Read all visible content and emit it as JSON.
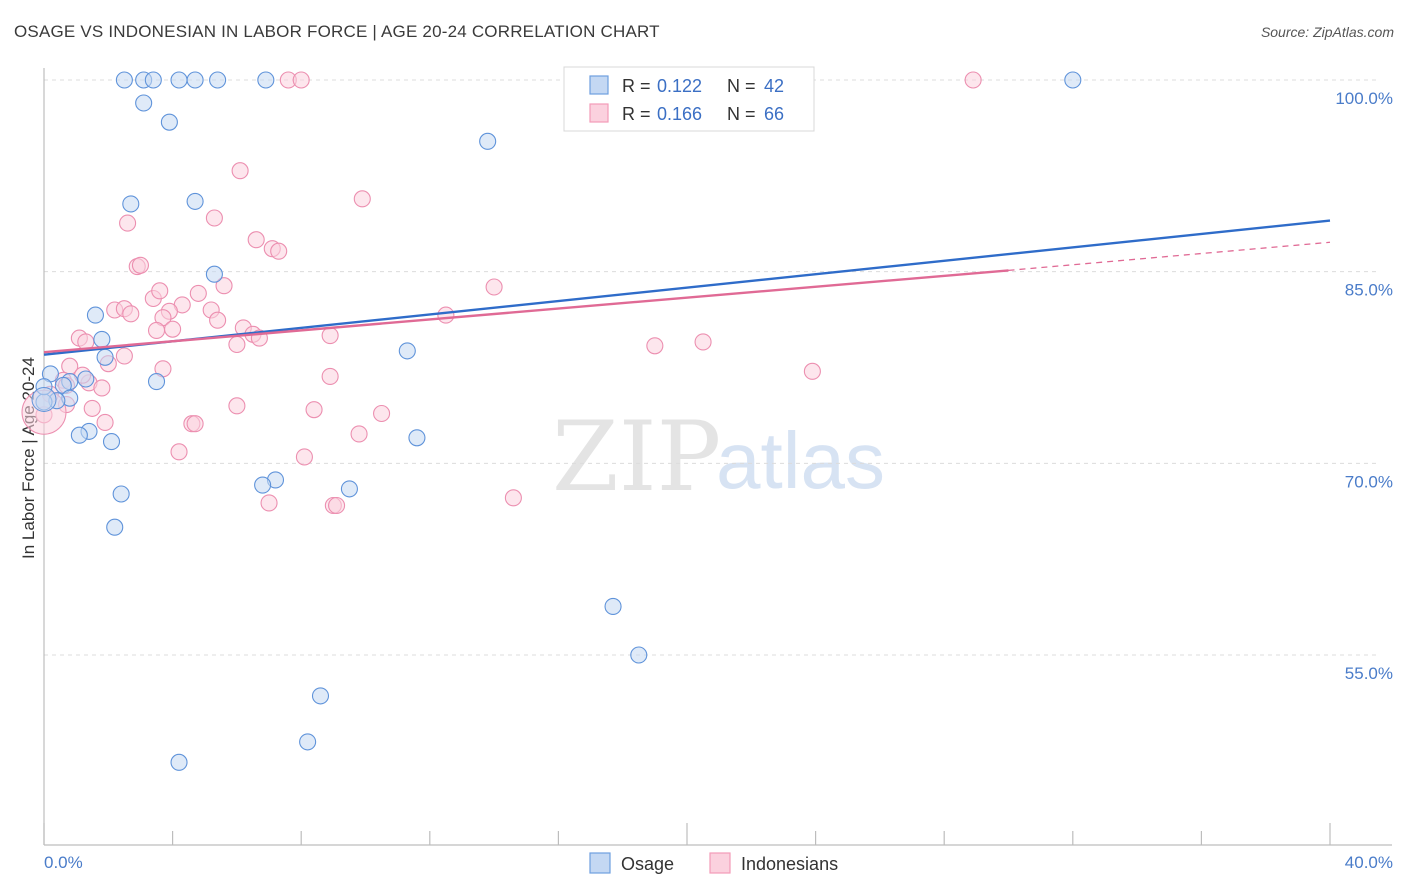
{
  "header": {
    "title": "OSAGE VS INDONESIAN IN LABOR FORCE | AGE 20-24 CORRELATION CHART",
    "source": "Source: ZipAtlas.com"
  },
  "watermark": {
    "zip": "ZIP",
    "atlas": "atlas"
  },
  "legend": {
    "rows": [
      {
        "r_label": "R =",
        "r_value": "0.122",
        "n_label": "N =",
        "n_value": "42"
      },
      {
        "r_label": "R =",
        "r_value": "0.166",
        "n_label": "N =",
        "n_value": "66"
      }
    ]
  },
  "bottom_legend": {
    "series1": "Osage",
    "series2": "Indonesians"
  },
  "chart_data": {
    "type": "scatter",
    "title": "OSAGE VS INDONESIAN IN LABOR FORCE | AGE 20-24 CORRELATION CHART",
    "xlabel": "",
    "ylabel": "In Labor Force | Age 20-24",
    "xlim": [
      0,
      40
    ],
    "ylim": [
      40,
      100
    ],
    "x_tick_labels": [
      "0.0%",
      "40.0%"
    ],
    "y_ticks": [
      55,
      70,
      85,
      100
    ],
    "y_tick_labels": [
      "55.0%",
      "70.0%",
      "85.0%",
      "100.0%"
    ],
    "grid": "horizontal dashed",
    "legend_position": "top-center",
    "colors": {
      "osage": "#6f9fdf",
      "osage_line": "#2f6cc9",
      "indonesians": "#f49bb8",
      "indonesians_line": "#e06a95"
    },
    "series": [
      {
        "name": "Osage",
        "R": 0.122,
        "N": 42,
        "trend": {
          "x0": 0.0,
          "y0": 78.5,
          "x1": 40.0,
          "y1": 89.0
        },
        "points": [
          [
            2.5,
            100.0
          ],
          [
            3.1,
            100.0
          ],
          [
            3.4,
            100.0
          ],
          [
            4.2,
            100.0
          ],
          [
            4.7,
            100.0
          ],
          [
            5.4,
            100.0
          ],
          [
            6.9,
            100.0
          ],
          [
            23.5,
            100.0
          ],
          [
            32.0,
            100.0
          ],
          [
            3.1,
            98.2
          ],
          [
            3.9,
            96.7
          ],
          [
            13.8,
            95.2
          ],
          [
            2.7,
            90.3
          ],
          [
            4.7,
            90.5
          ],
          [
            5.3,
            84.8
          ],
          [
            1.6,
            81.6
          ],
          [
            1.8,
            79.7
          ],
          [
            1.9,
            78.3
          ],
          [
            11.3,
            78.8
          ],
          [
            0.2,
            77.0
          ],
          [
            1.3,
            76.6
          ],
          [
            0.8,
            76.4
          ],
          [
            3.5,
            76.4
          ],
          [
            0.6,
            76.1
          ],
          [
            0.8,
            75.1
          ],
          [
            0.4,
            74.9
          ],
          [
            0.0,
            74.8
          ],
          [
            1.4,
            72.5
          ],
          [
            1.1,
            72.2
          ],
          [
            2.1,
            71.7
          ],
          [
            11.6,
            72.0
          ],
          [
            7.2,
            68.7
          ],
          [
            6.8,
            68.3
          ],
          [
            9.5,
            68.0
          ],
          [
            2.4,
            67.6
          ],
          [
            2.2,
            65.0
          ],
          [
            17.7,
            58.8
          ],
          [
            18.5,
            55.0
          ],
          [
            8.6,
            51.8
          ],
          [
            8.2,
            48.2
          ],
          [
            4.2,
            46.6
          ],
          [
            0.0,
            76.0
          ]
        ]
      },
      {
        "name": "Indonesians",
        "R": 0.166,
        "N": 66,
        "trend": {
          "x0": 0.0,
          "y0": 78.7,
          "x1": 30.0,
          "y1": 85.1,
          "x_dashed_end": 40.0,
          "y_dashed_end": 87.3
        },
        "points": [
          [
            7.6,
            100.0
          ],
          [
            8.0,
            100.0
          ],
          [
            23.5,
            100.0
          ],
          [
            28.9,
            100.0
          ],
          [
            6.1,
            92.9
          ],
          [
            9.9,
            90.7
          ],
          [
            2.6,
            88.8
          ],
          [
            5.3,
            89.2
          ],
          [
            6.6,
            87.5
          ],
          [
            7.1,
            86.8
          ],
          [
            7.3,
            86.6
          ],
          [
            2.9,
            85.4
          ],
          [
            3.0,
            85.5
          ],
          [
            14.0,
            83.8
          ],
          [
            5.6,
            83.9
          ],
          [
            4.8,
            83.3
          ],
          [
            3.4,
            82.9
          ],
          [
            3.6,
            83.5
          ],
          [
            4.3,
            82.4
          ],
          [
            2.2,
            82.0
          ],
          [
            2.5,
            82.1
          ],
          [
            2.7,
            81.7
          ],
          [
            3.9,
            81.9
          ],
          [
            5.2,
            82.0
          ],
          [
            12.5,
            81.6
          ],
          [
            5.4,
            81.2
          ],
          [
            3.7,
            81.4
          ],
          [
            3.5,
            80.4
          ],
          [
            4.0,
            80.5
          ],
          [
            6.2,
            80.6
          ],
          [
            6.5,
            80.1
          ],
          [
            6.7,
            79.8
          ],
          [
            8.9,
            80.0
          ],
          [
            1.1,
            79.8
          ],
          [
            1.3,
            79.5
          ],
          [
            6.0,
            79.3
          ],
          [
            19.0,
            79.2
          ],
          [
            20.5,
            79.5
          ],
          [
            2.5,
            78.4
          ],
          [
            0.8,
            77.6
          ],
          [
            3.7,
            77.4
          ],
          [
            23.9,
            77.2
          ],
          [
            8.9,
            76.8
          ],
          [
            0.6,
            76.5
          ],
          [
            1.4,
            76.3
          ],
          [
            0.7,
            76.1
          ],
          [
            1.8,
            75.9
          ],
          [
            0.2,
            75.4
          ],
          [
            0.7,
            74.6
          ],
          [
            1.5,
            74.3
          ],
          [
            6.0,
            74.5
          ],
          [
            8.4,
            74.2
          ],
          [
            10.5,
            73.9
          ],
          [
            0.0,
            73.8
          ],
          [
            1.9,
            73.2
          ],
          [
            4.6,
            73.1
          ],
          [
            4.7,
            73.1
          ],
          [
            9.8,
            72.3
          ],
          [
            4.2,
            70.9
          ],
          [
            8.1,
            70.5
          ],
          [
            14.6,
            67.3
          ],
          [
            7.0,
            66.9
          ],
          [
            9.0,
            66.7
          ],
          [
            9.1,
            66.7
          ],
          [
            2.0,
            77.8
          ],
          [
            1.2,
            76.9
          ]
        ]
      }
    ]
  }
}
